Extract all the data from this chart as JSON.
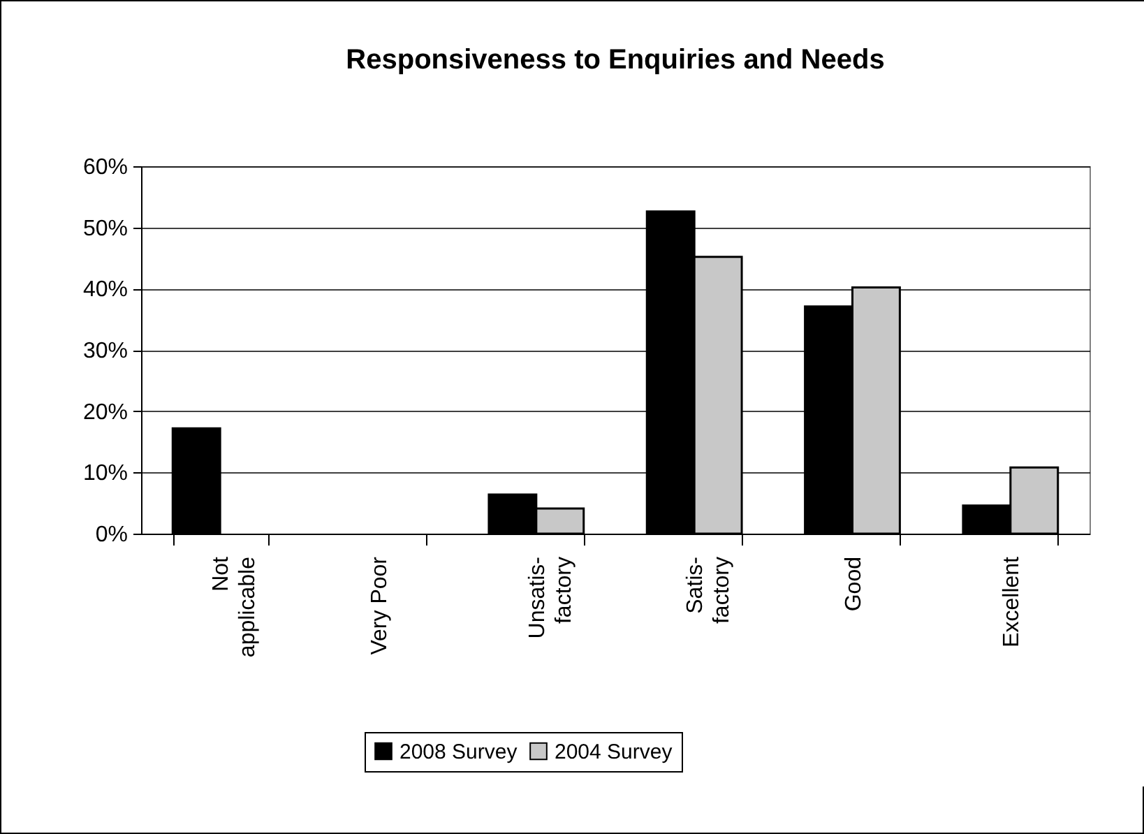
{
  "chart_data": {
    "type": "bar",
    "title": "Responsiveness to Enquiries and Needs",
    "categories": [
      "Not\napplicable",
      "Very Poor",
      "Unsatis-\nfactory",
      "Satis-\nfactory",
      "Good",
      "Excellent"
    ],
    "series": [
      {
        "name": "2008 Survey",
        "color": "#000000",
        "values": [
          17.2,
          0,
          6.4,
          52.6,
          37.1,
          4.6
        ]
      },
      {
        "name": "2004 Survey",
        "color": "#c8c8c8",
        "values": [
          0,
          0,
          4.1,
          45.2,
          40.2,
          10.8
        ]
      }
    ],
    "ylim": [
      0,
      60
    ],
    "yticks": [
      {
        "value": 0,
        "label": "0%"
      },
      {
        "value": 10,
        "label": "10%"
      },
      {
        "value": 20,
        "label": "20%"
      },
      {
        "value": 30,
        "label": "30%"
      },
      {
        "value": 40,
        "label": "40%"
      },
      {
        "value": 50,
        "label": "50%"
      },
      {
        "value": 60,
        "label": "60%"
      }
    ],
    "grid": "y",
    "legend": "bottom"
  }
}
